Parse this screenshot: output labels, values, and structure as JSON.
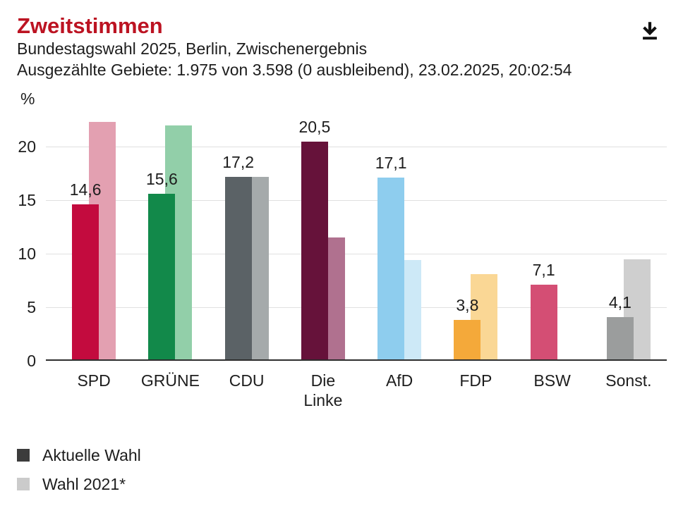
{
  "header": {
    "title": "Zweitstimmen",
    "subtitle": "Bundestagswahl 2025, Berlin, Zwischenergebnis",
    "status_line": "Ausgezählte Gebiete: 1.975 von 3.598 (0 ausbleibend), 23.02.2025, 20:02:54",
    "download_icon": "download-icon"
  },
  "chart_data": {
    "type": "bar",
    "title": "Zweitstimmen",
    "xlabel": "",
    "ylabel": "%",
    "ylim": [
      0,
      23.5
    ],
    "yticks": [
      0,
      5,
      10,
      15,
      20
    ],
    "grid": true,
    "legend_position": "bottom-left",
    "categories": [
      "SPD",
      "GRÜNE",
      "CDU",
      "Die Linke",
      "AfD",
      "FDP",
      "BSW",
      "Sonst."
    ],
    "series": [
      {
        "name": "Aktuelle Wahl",
        "values": [
          14.6,
          15.6,
          17.2,
          20.5,
          17.1,
          3.8,
          7.1,
          4.1
        ],
        "value_labels": [
          "14,6",
          "15,6",
          "17,2",
          "20,5",
          "17,1",
          "3,8",
          "7,1",
          "4,1"
        ],
        "colors": [
          "#c30b3e",
          "#12894a",
          "#5b6266",
          "#66123a",
          "#8ecdee",
          "#f4a93a",
          "#d44e74",
          "#9b9d9d"
        ]
      },
      {
        "name": "Wahl 2021*",
        "values": [
          22.3,
          22.0,
          17.2,
          11.5,
          9.4,
          8.1,
          null,
          9.5
        ],
        "colors": [
          "#e3a0b1",
          "#92cfa9",
          "#a5aaab",
          "#b0718f",
          "#cde9f7",
          "#fad795",
          null,
          "#cfcfcf"
        ]
      }
    ],
    "legend": [
      {
        "label": "Aktuelle Wahl",
        "color": "#3c3c3c"
      },
      {
        "label": "Wahl 2021*",
        "color": "#cbcbcb"
      }
    ]
  }
}
